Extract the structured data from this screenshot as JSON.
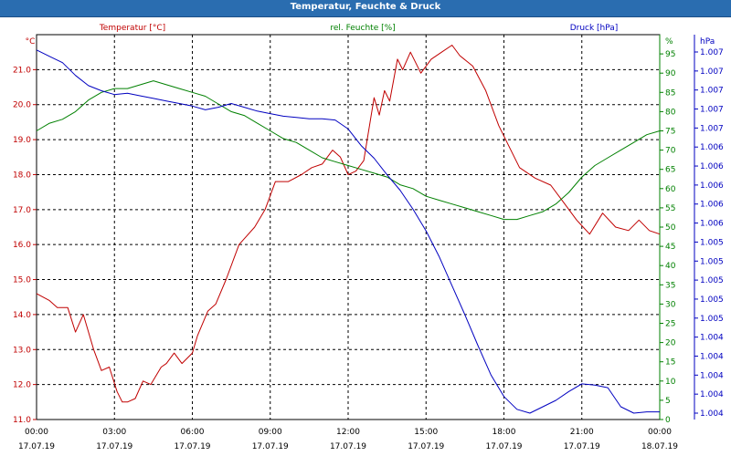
{
  "window": {
    "title": "Temperatur, Feuchte & Druck"
  },
  "chart_data": {
    "type": "line",
    "title": "Temperatur, Feuchte & Druck",
    "x_ticks": [
      {
        "time": "00:00",
        "date": "17.07.19"
      },
      {
        "time": "03:00",
        "date": "17.07.19"
      },
      {
        "time": "06:00",
        "date": "17.07.19"
      },
      {
        "time": "09:00",
        "date": "17.07.19"
      },
      {
        "time": "12:00",
        "date": "17.07.19"
      },
      {
        "time": "15:00",
        "date": "17.07.19"
      },
      {
        "time": "18:00",
        "date": "17.07.19"
      },
      {
        "time": "21:00",
        "date": "17.07.19"
      },
      {
        "time": "00:00",
        "date": "18.07.19"
      }
    ],
    "x_range_hours": [
      0,
      24
    ],
    "grid": true,
    "axes": {
      "temperature": {
        "unit": "°C",
        "range": [
          11.0,
          22.0
        ],
        "ticks": [
          "11.0",
          "12.0",
          "13.0",
          "14.0",
          "15.0",
          "16.0",
          "17.0",
          "18.0",
          "19.0",
          "20.0",
          "21.0"
        ]
      },
      "humidity": {
        "unit": "%",
        "range": [
          0,
          100
        ],
        "ticks": [
          "0",
          "5",
          "10",
          "15",
          "20",
          "25",
          "30",
          "35",
          "40",
          "45",
          "50",
          "55",
          "60",
          "65",
          "70",
          "75",
          "80",
          "85",
          "90",
          "95"
        ]
      },
      "pressure": {
        "unit": "hPa",
        "ticks": [
          "1.004",
          "1.004",
          "1.004",
          "1.004",
          "1.004",
          "1.005",
          "1.005",
          "1.005",
          "1.005",
          "1.005",
          "1.006",
          "1.006",
          "1.006",
          "1.006",
          "1.006",
          "1.007",
          "1.007",
          "1.007",
          "1.007",
          "1.007"
        ]
      }
    },
    "series": [
      {
        "name": "Temperatur [°C]",
        "axis": "temperature",
        "color": "#c00000",
        "x": [
          0,
          0.5,
          0.8,
          1.2,
          1.5,
          1.8,
          2.2,
          2.5,
          2.8,
          3.1,
          3.3,
          3.5,
          3.8,
          4.1,
          4.4,
          4.8,
          5.0,
          5.3,
          5.6,
          6.0,
          6.2,
          6.6,
          6.9,
          7.3,
          7.8,
          8.4,
          8.8,
          9.2,
          9.7,
          10.2,
          10.6,
          11.0,
          11.4,
          11.7,
          12.0,
          12.3,
          12.6,
          13.0,
          13.2,
          13.4,
          13.6,
          13.9,
          14.1,
          14.4,
          14.8,
          15.2,
          15.6,
          16.0,
          16.3,
          16.8,
          17.3,
          17.8,
          18.2,
          18.6,
          19.2,
          19.8,
          20.3,
          20.8,
          21.3,
          21.8,
          22.3,
          22.8,
          23.2,
          23.6,
          24.0
        ],
        "y": [
          14.6,
          14.4,
          14.2,
          14.2,
          13.5,
          14.0,
          13.0,
          12.4,
          12.5,
          11.8,
          11.5,
          11.5,
          11.6,
          12.1,
          12.0,
          12.5,
          12.6,
          12.9,
          12.6,
          12.9,
          13.4,
          14.1,
          14.3,
          15.0,
          16.0,
          16.5,
          17.0,
          17.8,
          17.8,
          18.0,
          18.2,
          18.3,
          18.7,
          18.5,
          18.0,
          18.1,
          18.4,
          20.2,
          19.7,
          20.4,
          20.1,
          21.3,
          21.0,
          21.5,
          20.9,
          21.3,
          21.5,
          21.7,
          21.4,
          21.1,
          20.4,
          19.4,
          18.8,
          18.2,
          17.9,
          17.7,
          17.2,
          16.7,
          16.3,
          16.9,
          16.5,
          16.4,
          16.7,
          16.4,
          16.3
        ]
      },
      {
        "name": "rel. Feuchte [%]",
        "axis": "humidity",
        "color": "#008000",
        "x": [
          0,
          0.5,
          1.0,
          1.5,
          2.0,
          2.5,
          3.0,
          3.5,
          4.0,
          4.5,
          5.0,
          5.5,
          6.0,
          6.5,
          7.0,
          7.5,
          8.0,
          8.5,
          9.0,
          9.5,
          10.0,
          10.5,
          11.0,
          11.5,
          12.0,
          12.5,
          13.0,
          13.5,
          14.0,
          14.5,
          15.0,
          15.5,
          16.0,
          16.5,
          17.0,
          17.5,
          18.0,
          18.5,
          19.0,
          19.5,
          20.0,
          20.5,
          21.0,
          21.5,
          22.0,
          22.5,
          23.0,
          23.5,
          24.0
        ],
        "y": [
          75,
          77,
          78,
          80,
          83,
          85,
          86,
          86,
          87,
          88,
          87,
          86,
          85,
          84,
          82,
          80,
          79,
          77,
          75,
          73,
          72,
          70,
          68,
          67,
          66,
          65,
          64,
          63,
          61,
          60,
          58,
          57,
          56,
          55,
          54,
          53,
          52,
          52,
          53,
          54,
          56,
          59,
          63,
          66,
          68,
          70,
          72,
          74,
          75
        ]
      },
      {
        "name": "Druck [hPa]",
        "axis": "pressure",
        "color": "#0000c0",
        "x": [
          0,
          0.5,
          1.0,
          1.5,
          2.0,
          2.5,
          3.0,
          3.5,
          4.0,
          4.5,
          5.0,
          5.5,
          6.0,
          6.5,
          7.0,
          7.5,
          8.0,
          8.5,
          9.0,
          9.5,
          10.0,
          10.5,
          11.0,
          11.5,
          12.0,
          12.5,
          13.0,
          13.5,
          14.0,
          14.5,
          15.0,
          15.5,
          16.0,
          16.5,
          17.0,
          17.5,
          18.0,
          18.5,
          19.0,
          19.5,
          20.0,
          20.5,
          21.0,
          21.5,
          22.0,
          22.5,
          23.0,
          23.5,
          24.0
        ],
        "y": [
          1.0071,
          1.00705,
          1.007,
          1.0069,
          1.00682,
          1.00678,
          1.00675,
          1.00676,
          1.00674,
          1.00672,
          1.0067,
          1.00668,
          1.00666,
          1.00663,
          1.00665,
          1.00668,
          1.00665,
          1.00662,
          1.0066,
          1.00658,
          1.00657,
          1.00656,
          1.00656,
          1.00655,
          1.00648,
          1.00635,
          1.00625,
          1.00612,
          1.006,
          1.00585,
          1.00568,
          1.00548,
          1.00525,
          1.00502,
          1.00478,
          1.00455,
          1.00438,
          1.00428,
          1.00425,
          1.0043,
          1.00435,
          1.00442,
          1.00448,
          1.00447,
          1.00445,
          1.0043,
          1.00425,
          1.00426,
          1.00426
        ]
      }
    ]
  }
}
